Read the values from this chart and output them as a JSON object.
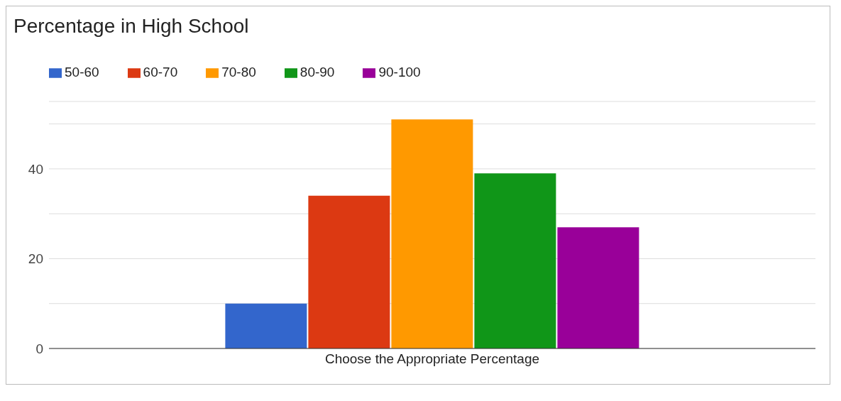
{
  "chart_data": {
    "type": "bar",
    "title": "Percentage in High School",
    "categories": [
      "Choose the Appropriate Percentage"
    ],
    "series": [
      {
        "name": "50-60",
        "color": "#3366cc",
        "values": [
          10
        ]
      },
      {
        "name": "60-70",
        "color": "#dc3912",
        "values": [
          34
        ]
      },
      {
        "name": "70-80",
        "color": "#ff9900",
        "values": [
          51
        ]
      },
      {
        "name": "80-90",
        "color": "#109618",
        "values": [
          39
        ]
      },
      {
        "name": "90-100",
        "color": "#990099",
        "values": [
          27
        ]
      }
    ],
    "ylim": [
      0,
      55
    ],
    "yticks": [
      0,
      {
        "value": 10,
        "label": null
      },
      20,
      {
        "value": 30,
        "label": null
      },
      40,
      {
        "value": 50,
        "label": null
      }
    ],
    "grid": "y",
    "legend": "top left"
  }
}
